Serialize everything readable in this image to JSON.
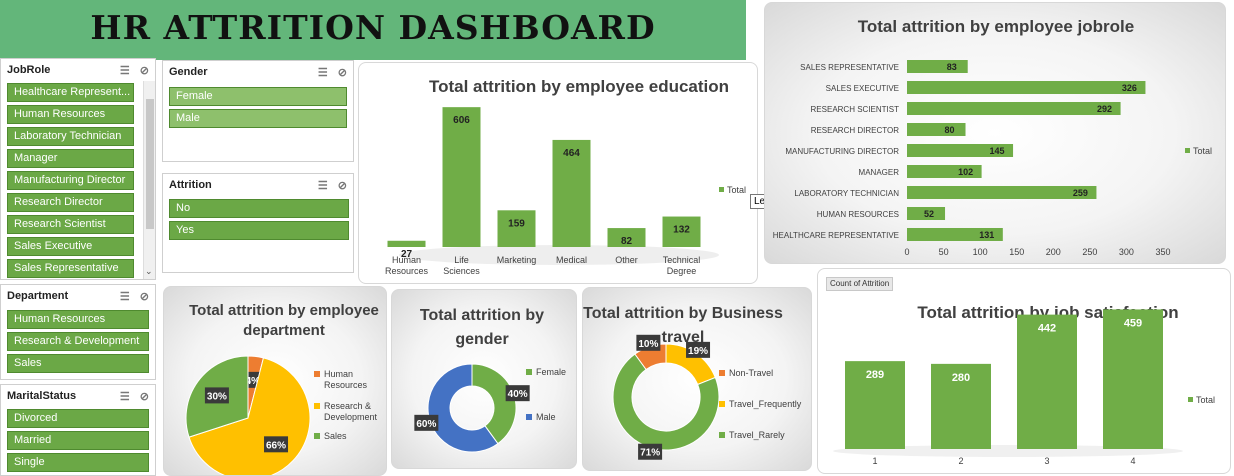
{
  "title": "HR ATTRITION DASHBOARD",
  "slicers": {
    "jobrole": {
      "header": "JobRole",
      "items": [
        "Healthcare Represent...",
        "Human Resources",
        "Laboratory Technician",
        "Manager",
        "Manufacturing Director",
        "Research Director",
        "Research Scientist",
        "Sales Executive",
        "Sales Representative"
      ]
    },
    "gender": {
      "header": "Gender",
      "items": [
        "Female",
        "Male"
      ]
    },
    "attrition": {
      "header": "Attrition",
      "items": [
        "No",
        "Yes"
      ]
    },
    "department": {
      "header": "Department",
      "items": [
        "Human Resources",
        "Research & Development",
        "Sales"
      ]
    },
    "marital": {
      "header": "MaritalStatus",
      "items": [
        "Divorced",
        "Married",
        "Single"
      ]
    },
    "icons": {
      "multiselect": "multi-select-icon",
      "clear": "clear-filter-icon"
    }
  },
  "legend_tooltip": "Legend",
  "count_badge": "Count of Attrition",
  "chart_data": [
    {
      "type": "bar",
      "title": "Total attrition by employee education",
      "categories": [
        "Human Resources",
        "Life Sciences",
        "Marketing",
        "Medical",
        "Other",
        "Technical Degree"
      ],
      "series": [
        {
          "name": "Total",
          "values": [
            27,
            606,
            159,
            464,
            82,
            132
          ]
        }
      ],
      "color": "#70ad47"
    },
    {
      "type": "bar",
      "orientation": "horizontal",
      "title": "Total attrition by employee jobrole",
      "categories": [
        "SALES REPRESENTATIVE",
        "SALES EXECUTIVE",
        "RESEARCH SCIENTIST",
        "RESEARCH DIRECTOR",
        "MANUFACTURING DIRECTOR",
        "MANAGER",
        "LABORATORY TECHNICIAN",
        "HUMAN RESOURCES",
        "HEALTHCARE REPRESENTATIVE"
      ],
      "series": [
        {
          "name": "Total",
          "values": [
            83,
            326,
            292,
            80,
            145,
            102,
            259,
            52,
            131
          ]
        }
      ],
      "xticks": [
        "0",
        "50",
        "100",
        "150",
        "200",
        "250",
        "300",
        "350"
      ],
      "xlim": [
        0,
        350
      ],
      "color": "#70ad47"
    },
    {
      "type": "pie",
      "title": "Total attrition by employee department",
      "labels": [
        "Human Resources",
        "Research & Development",
        "Sales"
      ],
      "values": [
        4,
        66,
        30
      ],
      "display": [
        "4%",
        "66%",
        "30%"
      ],
      "colors": [
        "#ed7d31",
        "#ffc000",
        "#70ad47"
      ]
    },
    {
      "type": "pie",
      "donut": true,
      "title": "Total attrition by gender",
      "labels": [
        "Female",
        "Male"
      ],
      "values": [
        40,
        60
      ],
      "display": [
        "40%",
        "60%"
      ],
      "colors": [
        "#70ad47",
        "#4472c4"
      ]
    },
    {
      "type": "pie",
      "donut": true,
      "title": "Total attrition by Business travel",
      "labels": [
        "Non-Travel",
        "Travel_Frequently",
        "Travel_Rarely"
      ],
      "values": [
        10,
        19,
        71
      ],
      "display": [
        "10%",
        "19%",
        "71%"
      ],
      "colors": [
        "#ed7d31",
        "#ffc000",
        "#70ad47"
      ]
    },
    {
      "type": "bar",
      "title": "Total attrition by job satisfaction",
      "categories": [
        "1",
        "2",
        "3",
        "4"
      ],
      "series": [
        {
          "name": "Total",
          "values": [
            289,
            280,
            442,
            459
          ]
        }
      ],
      "color": "#70ad47"
    }
  ]
}
